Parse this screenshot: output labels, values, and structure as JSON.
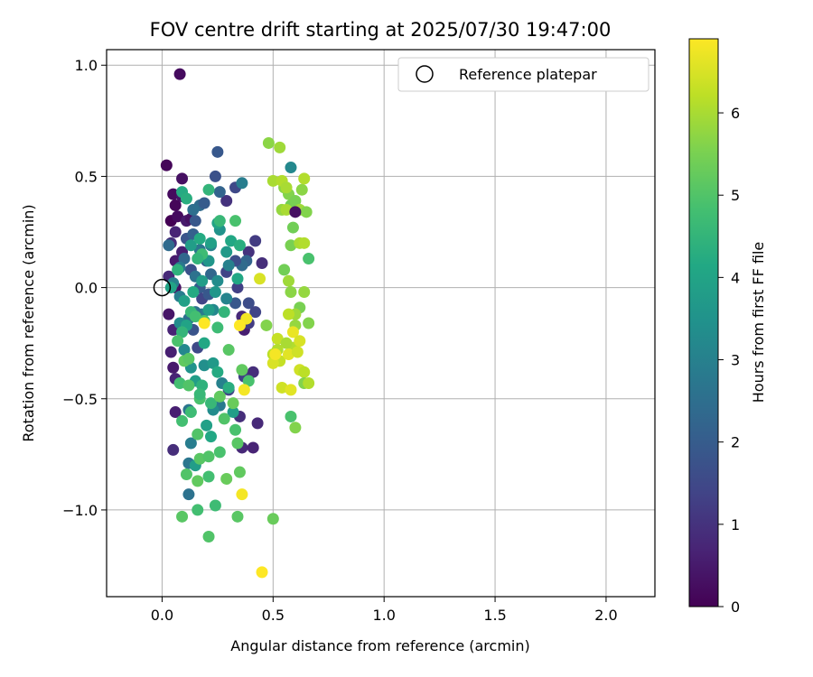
{
  "chart_data": {
    "type": "scatter",
    "title": "FOV centre drift starting at 2025/07/30 19:47:00",
    "xlabel": "Angular distance from reference (arcmin)",
    "ylabel": "Rotation from reference (arcmin)",
    "xlim": [
      -0.25,
      2.22
    ],
    "ylim": [
      -1.39,
      1.07
    ],
    "xticks": [
      0.0,
      0.5,
      1.0,
      1.5,
      2.0
    ],
    "xtick_labels": [
      "0.0",
      "0.5",
      "1.0",
      "1.5",
      "2.0"
    ],
    "yticks": [
      -1.0,
      -0.5,
      0.0,
      0.5,
      1.0
    ],
    "ytick_labels": [
      "−1.0",
      "−0.5",
      "0.0",
      "0.5",
      "1.0"
    ],
    "grid": true,
    "colormap": "viridis",
    "colorbar": {
      "label": "Hours from first FF file",
      "range": [
        0,
        6.9
      ],
      "ticks": [
        0,
        1,
        2,
        3,
        4,
        5,
        6
      ],
      "tick_labels": [
        "0",
        "1",
        "2",
        "3",
        "4",
        "5",
        "6"
      ]
    },
    "legend": {
      "position": "top-right",
      "entries": [
        {
          "label": "Reference platepar",
          "marker": "open-circle",
          "x": 0.0,
          "y": 0.0
        }
      ]
    },
    "series": [
      {
        "points": [
          [
            0.08,
            0.96,
            0.2
          ],
          [
            0.02,
            0.55,
            0.1
          ],
          [
            0.09,
            0.49,
            0.3
          ],
          [
            0.05,
            0.42,
            0.2
          ],
          [
            0.09,
            0.41,
            0.4
          ],
          [
            0.06,
            0.37,
            0.1
          ],
          [
            0.04,
            0.3,
            0.0
          ],
          [
            0.07,
            0.32,
            0.2
          ],
          [
            0.11,
            0.3,
            0.5
          ],
          [
            0.13,
            0.31,
            0.3
          ],
          [
            0.06,
            0.25,
            0.7
          ],
          [
            0.04,
            0.2,
            0.9
          ],
          [
            0.09,
            0.16,
            0.6
          ],
          [
            0.06,
            0.12,
            0.5
          ],
          [
            0.03,
            0.05,
            0.8
          ],
          [
            0.06,
            0.0,
            0.3
          ],
          [
            0.03,
            -0.12,
            0.4
          ],
          [
            0.05,
            -0.19,
            0.7
          ],
          [
            0.04,
            -0.29,
            0.6
          ],
          [
            0.05,
            -0.36,
            0.5
          ],
          [
            0.06,
            -0.41,
            0.7
          ],
          [
            0.06,
            -0.56,
            0.6
          ],
          [
            0.05,
            -0.73,
            0.9
          ],
          [
            0.25,
            0.61,
            1.9
          ],
          [
            0.24,
            0.5,
            1.7
          ],
          [
            0.33,
            0.45,
            1.5
          ],
          [
            0.36,
            0.47,
            2.9
          ],
          [
            0.29,
            0.39,
            1.0
          ],
          [
            0.26,
            0.43,
            2.2
          ],
          [
            0.42,
            0.21,
            1.2
          ],
          [
            0.39,
            0.16,
            1.0
          ],
          [
            0.38,
            0.12,
            2.2
          ],
          [
            0.36,
            0.1,
            2.4
          ],
          [
            0.33,
            0.12,
            1.6
          ],
          [
            0.29,
            0.07,
            1.4
          ],
          [
            0.45,
            0.11,
            0.9
          ],
          [
            0.34,
            0.0,
            1.3
          ],
          [
            0.33,
            -0.07,
            1.9
          ],
          [
            0.39,
            -0.07,
            1.6
          ],
          [
            0.42,
            -0.11,
            1.4
          ],
          [
            0.36,
            -0.13,
            0.8
          ],
          [
            0.37,
            -0.19,
            0.6
          ],
          [
            0.39,
            -0.16,
            1.2
          ],
          [
            0.37,
            -0.4,
            1.3
          ],
          [
            0.41,
            -0.38,
            0.9
          ],
          [
            0.43,
            -0.61,
            0.8
          ],
          [
            0.35,
            -0.58,
            0.9
          ],
          [
            0.36,
            -0.72,
            0.8
          ],
          [
            0.41,
            -0.72,
            0.7
          ],
          [
            0.3,
            -0.46,
            1.4
          ],
          [
            0.11,
            0.22,
            1.8
          ],
          [
            0.14,
            0.24,
            2.1
          ],
          [
            0.1,
            0.13,
            2.3
          ],
          [
            0.13,
            0.08,
            1.7
          ],
          [
            0.15,
            0.05,
            2.6
          ],
          [
            0.17,
            0.0,
            2.0
          ],
          [
            0.18,
            -0.05,
            1.4
          ],
          [
            0.21,
            -0.03,
            1.9
          ],
          [
            0.22,
            0.06,
            2.3
          ],
          [
            0.2,
            0.12,
            2.1
          ],
          [
            0.17,
            0.17,
            2.7
          ],
          [
            0.15,
            0.3,
            1.9
          ],
          [
            0.17,
            0.37,
            2.4
          ],
          [
            0.19,
            0.38,
            2.0
          ],
          [
            0.14,
            0.35,
            2.5
          ],
          [
            0.08,
            0.09,
            2.8
          ],
          [
            0.05,
            0.02,
            3.0
          ],
          [
            0.03,
            0.19,
            2.4
          ],
          [
            0.08,
            -0.04,
            2.9
          ],
          [
            0.12,
            -0.14,
            2.5
          ],
          [
            0.14,
            -0.19,
            1.8
          ],
          [
            0.16,
            -0.27,
            1.5
          ],
          [
            0.18,
            -0.12,
            2.9
          ],
          [
            0.23,
            -0.1,
            3.2
          ],
          [
            0.25,
            0.03,
            3.3
          ],
          [
            0.22,
            0.19,
            3.0
          ],
          [
            0.26,
            0.26,
            3.5
          ],
          [
            0.29,
            -0.05,
            3.1
          ],
          [
            0.3,
            0.1,
            3.0
          ],
          [
            0.15,
            -0.11,
            2.6
          ],
          [
            0.08,
            -0.16,
            3.3
          ],
          [
            0.1,
            -0.28,
            3.2
          ],
          [
            0.12,
            -0.55,
            2.7
          ],
          [
            0.13,
            -0.7,
            2.9
          ],
          [
            0.12,
            -0.79,
            2.7
          ],
          [
            0.12,
            -0.93,
            2.6
          ],
          [
            0.26,
            -0.53,
            2.8
          ],
          [
            0.19,
            -0.35,
            3.4
          ],
          [
            0.23,
            -0.55,
            3.3
          ],
          [
            0.27,
            -0.43,
            3.0
          ],
          [
            0.13,
            0.19,
            3.8
          ],
          [
            0.17,
            0.22,
            4.2
          ],
          [
            0.22,
            0.2,
            3.9
          ],
          [
            0.25,
            0.29,
            4.0
          ],
          [
            0.29,
            0.16,
            3.7
          ],
          [
            0.31,
            0.21,
            4.1
          ],
          [
            0.21,
            0.12,
            3.6
          ],
          [
            0.18,
            0.03,
            3.8
          ],
          [
            0.24,
            -0.02,
            3.6
          ],
          [
            0.1,
            -0.06,
            3.9
          ],
          [
            0.14,
            -0.02,
            4.2
          ],
          [
            0.07,
            0.08,
            4.4
          ],
          [
            0.04,
            0.0,
            4.0
          ],
          [
            0.34,
            0.04,
            4.1
          ],
          [
            0.35,
            0.19,
            4.3
          ],
          [
            0.21,
            -0.1,
            3.8
          ],
          [
            0.11,
            -0.17,
            4.0
          ],
          [
            0.13,
            -0.36,
            3.5
          ],
          [
            0.15,
            -0.42,
            3.8
          ],
          [
            0.18,
            -0.44,
            4.4
          ],
          [
            0.19,
            -0.25,
            4.1
          ],
          [
            0.23,
            -0.34,
            3.7
          ],
          [
            0.25,
            -0.38,
            4.2
          ],
          [
            0.2,
            -0.62,
            3.9
          ],
          [
            0.22,
            -0.67,
            4.1
          ],
          [
            0.15,
            -0.8,
            3.8
          ],
          [
            0.32,
            -0.56,
            3.8
          ],
          [
            0.3,
            -0.45,
            4.3
          ],
          [
            0.09,
            0.43,
            4.2
          ],
          [
            0.11,
            0.4,
            4.3
          ],
          [
            0.18,
            0.15,
            4.7
          ],
          [
            0.16,
            0.13,
            4.5
          ],
          [
            0.13,
            -0.11,
            4.6
          ],
          [
            0.15,
            -0.13,
            4.8
          ],
          [
            0.19,
            -0.15,
            4.9
          ],
          [
            0.21,
            0.44,
            4.5
          ],
          [
            0.26,
            0.3,
            4.6
          ],
          [
            0.33,
            0.3,
            4.9
          ],
          [
            0.28,
            -0.11,
            4.5
          ],
          [
            0.25,
            -0.18,
            4.7
          ],
          [
            0.09,
            -0.2,
            4.5
          ],
          [
            0.07,
            -0.24,
            4.9
          ],
          [
            0.1,
            -0.33,
            5.2
          ],
          [
            0.12,
            -0.32,
            5.1
          ],
          [
            0.08,
            -0.43,
            4.8
          ],
          [
            0.12,
            -0.44,
            5.0
          ],
          [
            0.17,
            -0.5,
            4.9
          ],
          [
            0.17,
            -0.48,
            4.6
          ],
          [
            0.13,
            -0.56,
            4.7
          ],
          [
            0.22,
            -0.52,
            4.6
          ],
          [
            0.3,
            -0.28,
            5.1
          ],
          [
            0.36,
            -0.37,
            5.2
          ],
          [
            0.39,
            -0.42,
            4.9
          ],
          [
            0.26,
            -0.49,
            5.2
          ],
          [
            0.28,
            -0.59,
            5.0
          ],
          [
            0.33,
            -0.64,
            4.9
          ],
          [
            0.32,
            -0.52,
            5.3
          ],
          [
            0.09,
            -0.6,
            4.8
          ],
          [
            0.16,
            -0.66,
            5.0
          ],
          [
            0.17,
            -0.77,
            5.1
          ],
          [
            0.21,
            -0.76,
            5.0
          ],
          [
            0.26,
            -0.74,
            4.9
          ],
          [
            0.34,
            -0.7,
            5.1
          ],
          [
            0.35,
            -0.83,
            5.2
          ],
          [
            0.29,
            -0.86,
            5.3
          ],
          [
            0.21,
            -0.85,
            4.8
          ],
          [
            0.11,
            -0.84,
            5.0
          ],
          [
            0.16,
            -0.87,
            5.2
          ],
          [
            0.16,
            -1.0,
            4.8
          ],
          [
            0.24,
            -0.98,
            4.7
          ],
          [
            0.09,
            -1.03,
            5.1
          ],
          [
            0.34,
            -1.03,
            5.1
          ],
          [
            0.21,
            -1.12,
            5.0
          ],
          [
            0.5,
            -1.04,
            5.3
          ],
          [
            0.58,
            -0.58,
            4.9
          ],
          [
            0.6,
            -0.63,
            5.6
          ],
          [
            0.47,
            -0.17,
            5.6
          ],
          [
            0.55,
            0.08,
            5.4
          ],
          [
            0.62,
            -0.09,
            5.5
          ],
          [
            0.6,
            -0.17,
            5.8
          ],
          [
            0.58,
            0.37,
            5.4
          ],
          [
            0.54,
            0.35,
            5.8
          ],
          [
            0.57,
            0.42,
            5.6
          ],
          [
            0.6,
            0.39,
            5.5
          ],
          [
            0.55,
            0.45,
            5.7
          ],
          [
            0.56,
            0.35,
            6.0
          ],
          [
            0.62,
            0.35,
            5.9
          ],
          [
            0.59,
            0.27,
            5.4
          ],
          [
            0.65,
            0.34,
            5.6
          ],
          [
            0.66,
            0.13,
            4.9
          ],
          [
            0.63,
            0.44,
            5.7
          ],
          [
            0.64,
            0.49,
            6.1
          ],
          [
            0.48,
            0.65,
            5.7
          ],
          [
            0.53,
            0.63,
            5.9
          ],
          [
            0.5,
            0.48,
            6.0
          ],
          [
            0.54,
            0.48,
            6.1
          ],
          [
            0.58,
            0.54,
            3.2
          ],
          [
            0.6,
            0.34,
            0.3
          ],
          [
            0.58,
            0.19,
            5.5
          ],
          [
            0.62,
            0.2,
            6.0
          ],
          [
            0.64,
            0.2,
            6.1
          ],
          [
            0.57,
            0.03,
            5.9
          ],
          [
            0.58,
            -0.02,
            5.7
          ],
          [
            0.64,
            -0.02,
            5.8
          ],
          [
            0.6,
            -0.12,
            5.9
          ],
          [
            0.66,
            -0.16,
            5.6
          ],
          [
            0.57,
            -0.12,
            6.2
          ],
          [
            0.59,
            -0.27,
            6.1
          ],
          [
            0.52,
            -0.23,
            6.3
          ],
          [
            0.56,
            -0.25,
            6.0
          ],
          [
            0.5,
            -0.3,
            6.2
          ],
          [
            0.52,
            -0.28,
            6.1
          ],
          [
            0.53,
            -0.33,
            6.3
          ],
          [
            0.5,
            -0.34,
            6.5
          ],
          [
            0.54,
            -0.45,
            6.4
          ],
          [
            0.58,
            -0.46,
            6.6
          ],
          [
            0.62,
            -0.37,
            6.4
          ],
          [
            0.64,
            -0.38,
            6.2
          ],
          [
            0.64,
            -0.43,
            5.6
          ],
          [
            0.66,
            -0.43,
            6.1
          ],
          [
            0.59,
            -0.2,
            6.7
          ],
          [
            0.62,
            -0.24,
            6.5
          ],
          [
            0.57,
            -0.3,
            6.6
          ],
          [
            0.51,
            -0.3,
            6.8
          ],
          [
            0.38,
            -0.14,
            6.8
          ],
          [
            0.35,
            -0.17,
            6.9
          ],
          [
            0.19,
            -0.16,
            6.9
          ],
          [
            0.36,
            -0.93,
            6.8
          ],
          [
            0.45,
            -1.28,
            6.9
          ],
          [
            0.37,
            -0.46,
            6.8
          ],
          [
            0.44,
            0.04,
            6.5
          ],
          [
            0.61,
            -0.29,
            6.4
          ],
          [
            0.56,
            0.45,
            6.0
          ]
        ]
      }
    ]
  }
}
